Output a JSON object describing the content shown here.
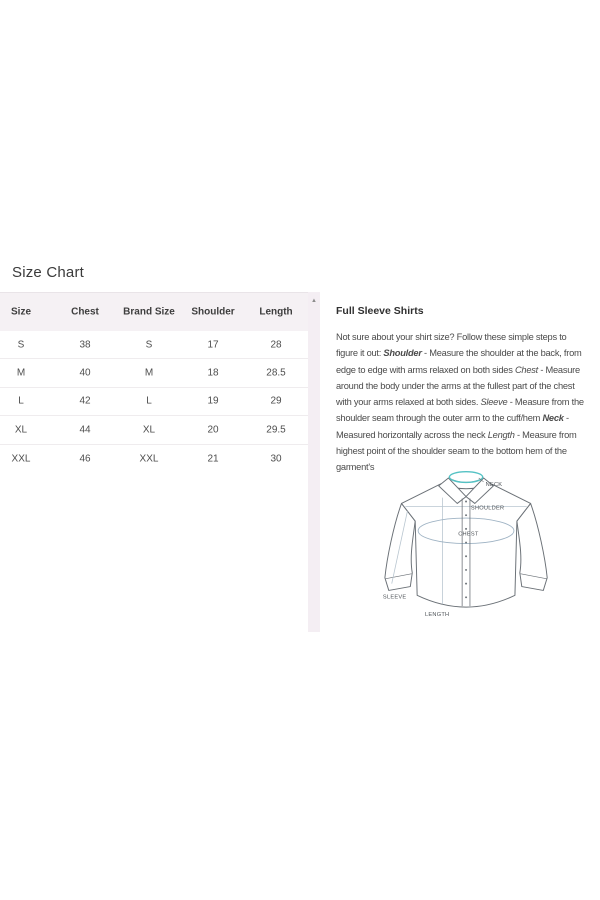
{
  "page": {
    "title": "Size Chart"
  },
  "size_table": {
    "headers": [
      "Size",
      "Chest",
      "Brand Size",
      "Shoulder",
      "Length"
    ],
    "rows": [
      [
        "S",
        "38",
        "S",
        "17",
        "28"
      ],
      [
        "M",
        "40",
        "M",
        "18",
        "28.5"
      ],
      [
        "L",
        "42",
        "L",
        "19",
        "29"
      ],
      [
        "XL",
        "44",
        "XL",
        "20",
        "29.5"
      ],
      [
        "XXL",
        "46",
        "XXL",
        "21",
        "30"
      ]
    ]
  },
  "scrollbar": {
    "up_icon": "▲"
  },
  "info": {
    "heading": "Full Sleeve Shirts",
    "segments": [
      {
        "text": "Not sure about your shirt size? Follow these simple steps to figure it out: ",
        "style": ""
      },
      {
        "text": "Shoulder",
        "style": "bold-italic"
      },
      {
        "text": " - Measure the shoulder at the back, from edge to edge with arms relaxed on both sides ",
        "style": ""
      },
      {
        "text": "Chest",
        "style": "italic"
      },
      {
        "text": " - Measure around the body under the arms at the fullest part of the chest with your arms relaxed at both sides. ",
        "style": ""
      },
      {
        "text": "Sleeve",
        "style": "italic"
      },
      {
        "text": " - Measure from the shoulder seam through the outer arm to the cuff/hem ",
        "style": ""
      },
      {
        "text": "Neck",
        "style": "bold-italic"
      },
      {
        "text": " - Measured horizontally across the neck ",
        "style": ""
      },
      {
        "text": "Length",
        "style": "italic"
      },
      {
        "text": " - Measure from highest point of the shoulder seam to the bottom hem of the garment's",
        "style": ""
      }
    ]
  },
  "diagram": {
    "labels": {
      "neck": "NECK",
      "shoulder": "SHOULDER",
      "chest": "CHEST",
      "sleeve": "SLEEVE",
      "length": "LENGTH"
    }
  },
  "colors": {
    "accent_teal": "#54c2c4",
    "table_header_bg": "#f5f1f4",
    "scrollbar_track": "#f4eef3",
    "row_divider": "#efecee",
    "diagram_line": "#6b7177",
    "measure_line": "#b9c6d0"
  }
}
